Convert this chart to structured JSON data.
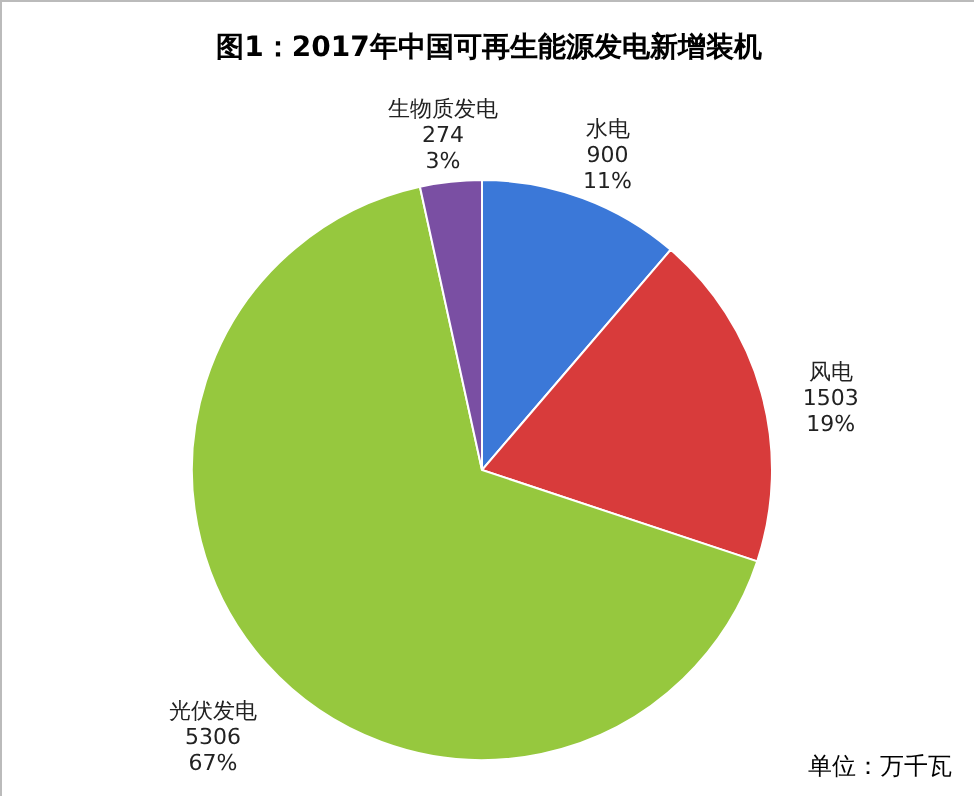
{
  "chart_data": {
    "type": "pie",
    "title": "图1：2017年中国可再生能源发电新增装机",
    "categories": [
      "水电",
      "风电",
      "光伏发电",
      "生物质发电"
    ],
    "values": [
      900,
      1503,
      5306,
      274
    ],
    "colors": [
      "#3b78d8",
      "#d83b3b",
      "#96c83e",
      "#7a4fa3"
    ],
    "value_labels": [
      "900\n11%",
      "1503\n19%",
      "5306\n67%",
      "274\n3%"
    ],
    "annotations": [
      "单位：万千瓦"
    ],
    "legend": false
  }
}
